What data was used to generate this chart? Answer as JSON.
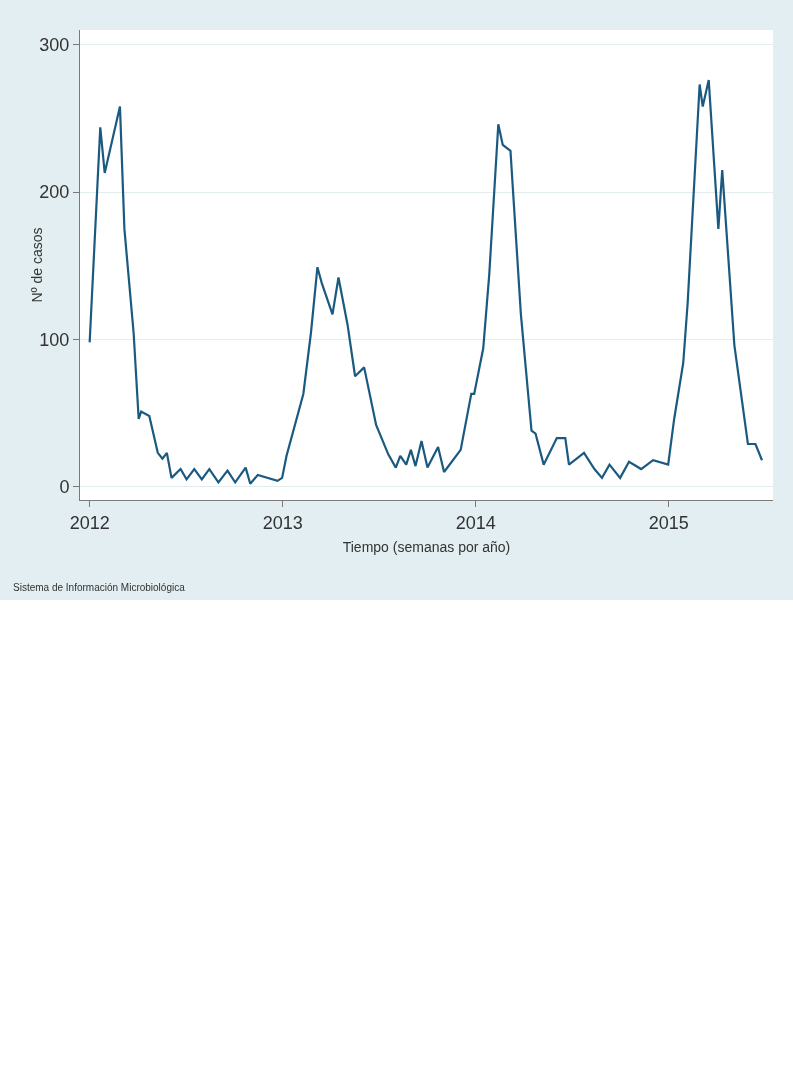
{
  "chart_data": {
    "type": "line",
    "xlabel": "Tiempo (semanas por año)",
    "ylabel": "Nº de casos",
    "annotations": [
      "Sistema de Información Microbiológica"
    ],
    "xlim": [
      2011.95,
      2015.54
    ],
    "xticks": [
      2012,
      2013,
      2014,
      2015
    ],
    "ylim": [
      -9,
      310
    ],
    "yticks": [
      0,
      100,
      200,
      300
    ],
    "grid": "y",
    "marker": "none",
    "line_style": "solid",
    "series": [
      {
        "color": "#1b5a80",
        "x": [
          2012.0,
          2012.055,
          2012.078,
          2012.157,
          2012.18,
          2012.228,
          2012.254,
          2012.267,
          2012.309,
          2012.353,
          2012.377,
          2012.4,
          2012.424,
          2012.471,
          2012.502,
          2012.542,
          2012.581,
          2012.62,
          2012.667,
          2012.714,
          2012.754,
          2012.808,
          2012.832,
          2012.871,
          2012.973,
          2012.997,
          2013.02,
          2013.107,
          2013.146,
          2013.18,
          2013.203,
          2013.258,
          2013.289,
          2013.336,
          2013.375,
          2013.422,
          2013.484,
          2013.547,
          2013.586,
          2013.609,
          2013.64,
          2013.664,
          2013.688,
          2013.719,
          2013.75,
          2013.805,
          2013.836,
          2013.922,
          2013.977,
          2013.992,
          2014.039,
          2014.07,
          2014.117,
          2014.14,
          2014.18,
          2014.234,
          2014.289,
          2014.31,
          2014.352,
          2014.42,
          2014.464,
          2014.483,
          2014.561,
          2014.615,
          2014.654,
          2014.693,
          2014.748,
          2014.794,
          2014.857,
          2014.919,
          2014.997,
          2015.028,
          2015.075,
          2015.098,
          2015.16,
          2015.176,
          2015.207,
          2015.257,
          2015.277,
          2015.34,
          2015.41,
          2015.449,
          2015.483
        ],
        "values": [
          98,
          244,
          213,
          258,
          175,
          104,
          46,
          51,
          48,
          23,
          19,
          23,
          6,
          12,
          5,
          12,
          5,
          12,
          3,
          11,
          3,
          13,
          2,
          8,
          4,
          6,
          21,
          63,
          104,
          149,
          138,
          117,
          142,
          110,
          75,
          81,
          42,
          22,
          13,
          21,
          15,
          25,
          14,
          31,
          13,
          27,
          10,
          25,
          63,
          63,
          94,
          144,
          246,
          232,
          228,
          117,
          38,
          36,
          15,
          33,
          33,
          15,
          23,
          12,
          6,
          15,
          6,
          17,
          12,
          18,
          15,
          46,
          84,
          125,
          273,
          258,
          276,
          175,
          215,
          96,
          29,
          29,
          18
        ]
      }
    ]
  }
}
